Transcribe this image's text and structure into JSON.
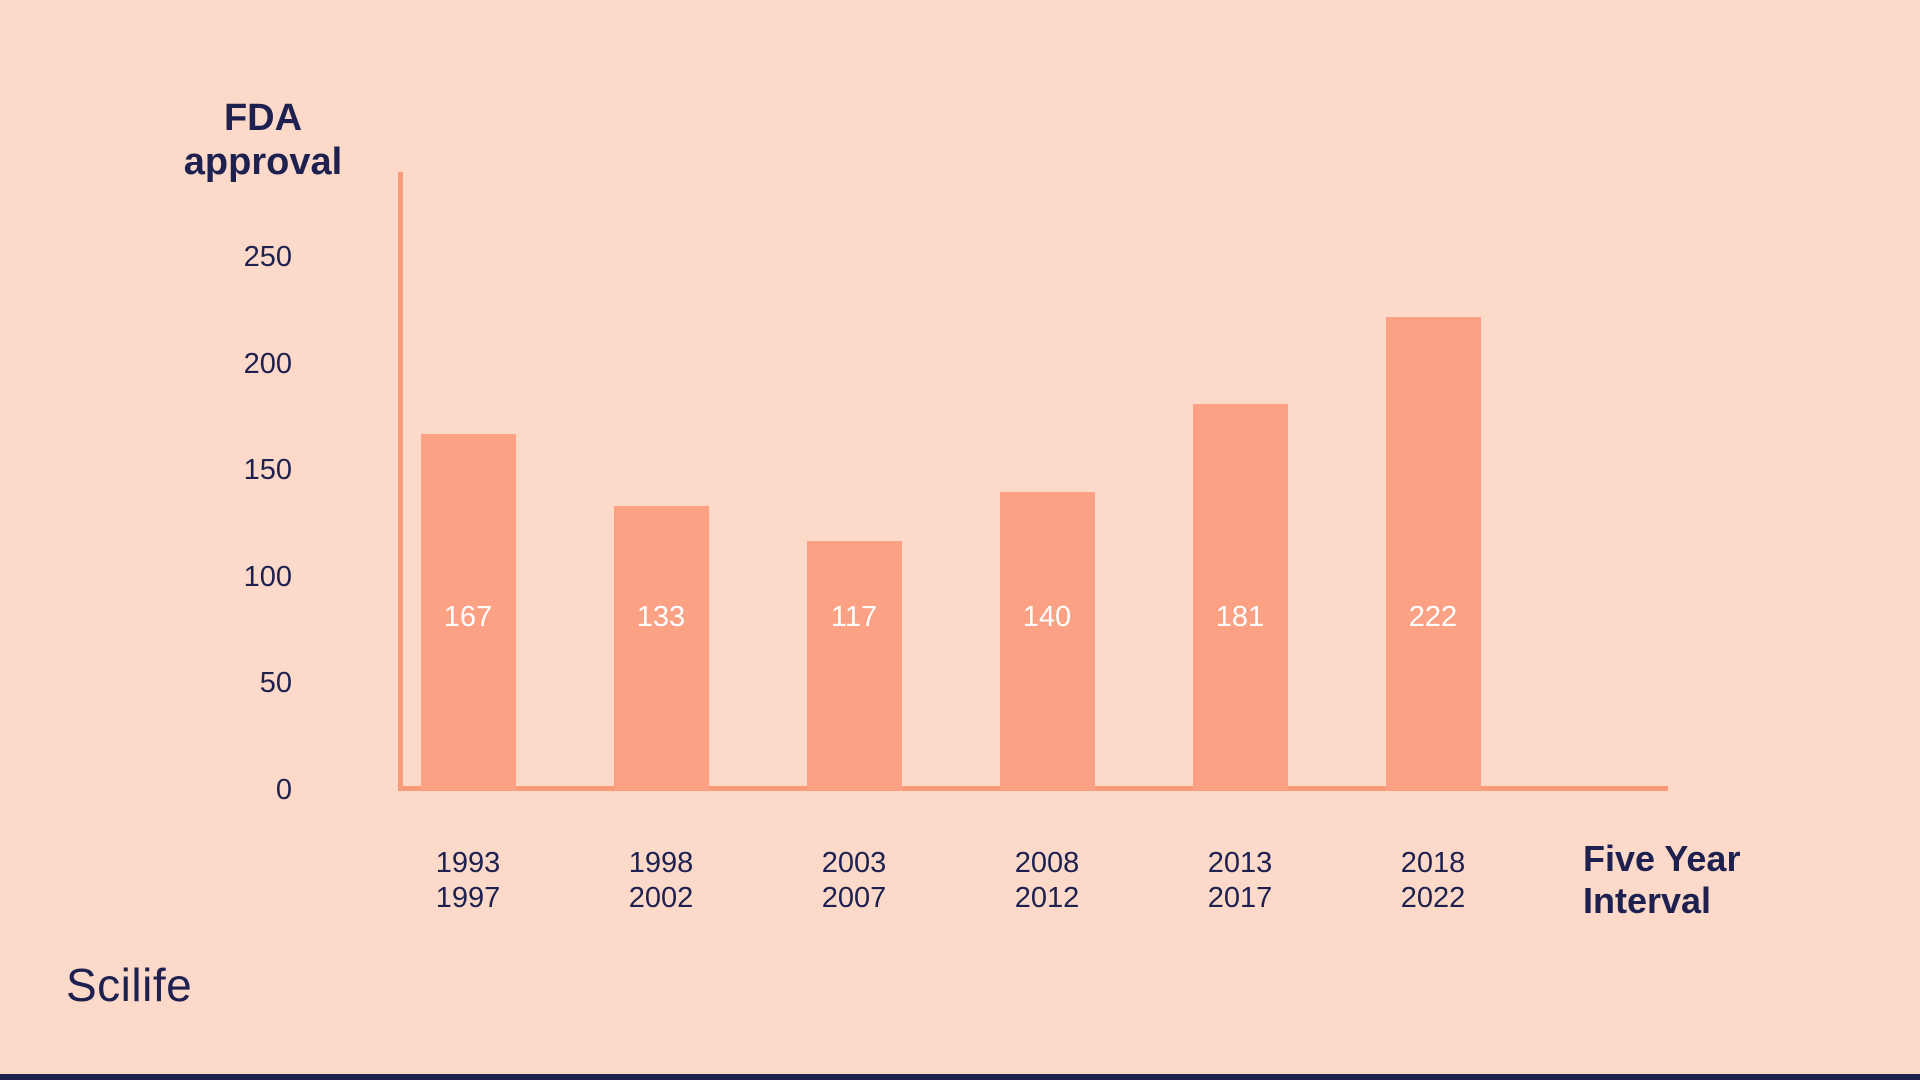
{
  "page": {
    "background": "#FCD9C8",
    "bar_color": "#FCA184",
    "axis_color": "#F89B78",
    "text_color": "#1E2150",
    "value_label_color": "#FFFFFF",
    "footer_bar_color": "#1E2150"
  },
  "logo": {
    "text": "Scilife"
  },
  "chart_data": {
    "type": "bar",
    "title": "",
    "ylabel": "FDA\napproval",
    "xlabel": "Five Year\nInterval",
    "categories": [
      "1993\n1997",
      "1998\n2002",
      "2003\n2007",
      "2008\n2012",
      "2013\n2017",
      "2018\n2022"
    ],
    "values": [
      167,
      133,
      117,
      140,
      181,
      222
    ],
    "yticks": [
      0,
      50,
      100,
      150,
      200,
      250
    ],
    "ylim": [
      0,
      290
    ],
    "grid": false,
    "legend_position": "none",
    "bar_color": "#FCA184",
    "value_labels_inside_bars": true
  }
}
